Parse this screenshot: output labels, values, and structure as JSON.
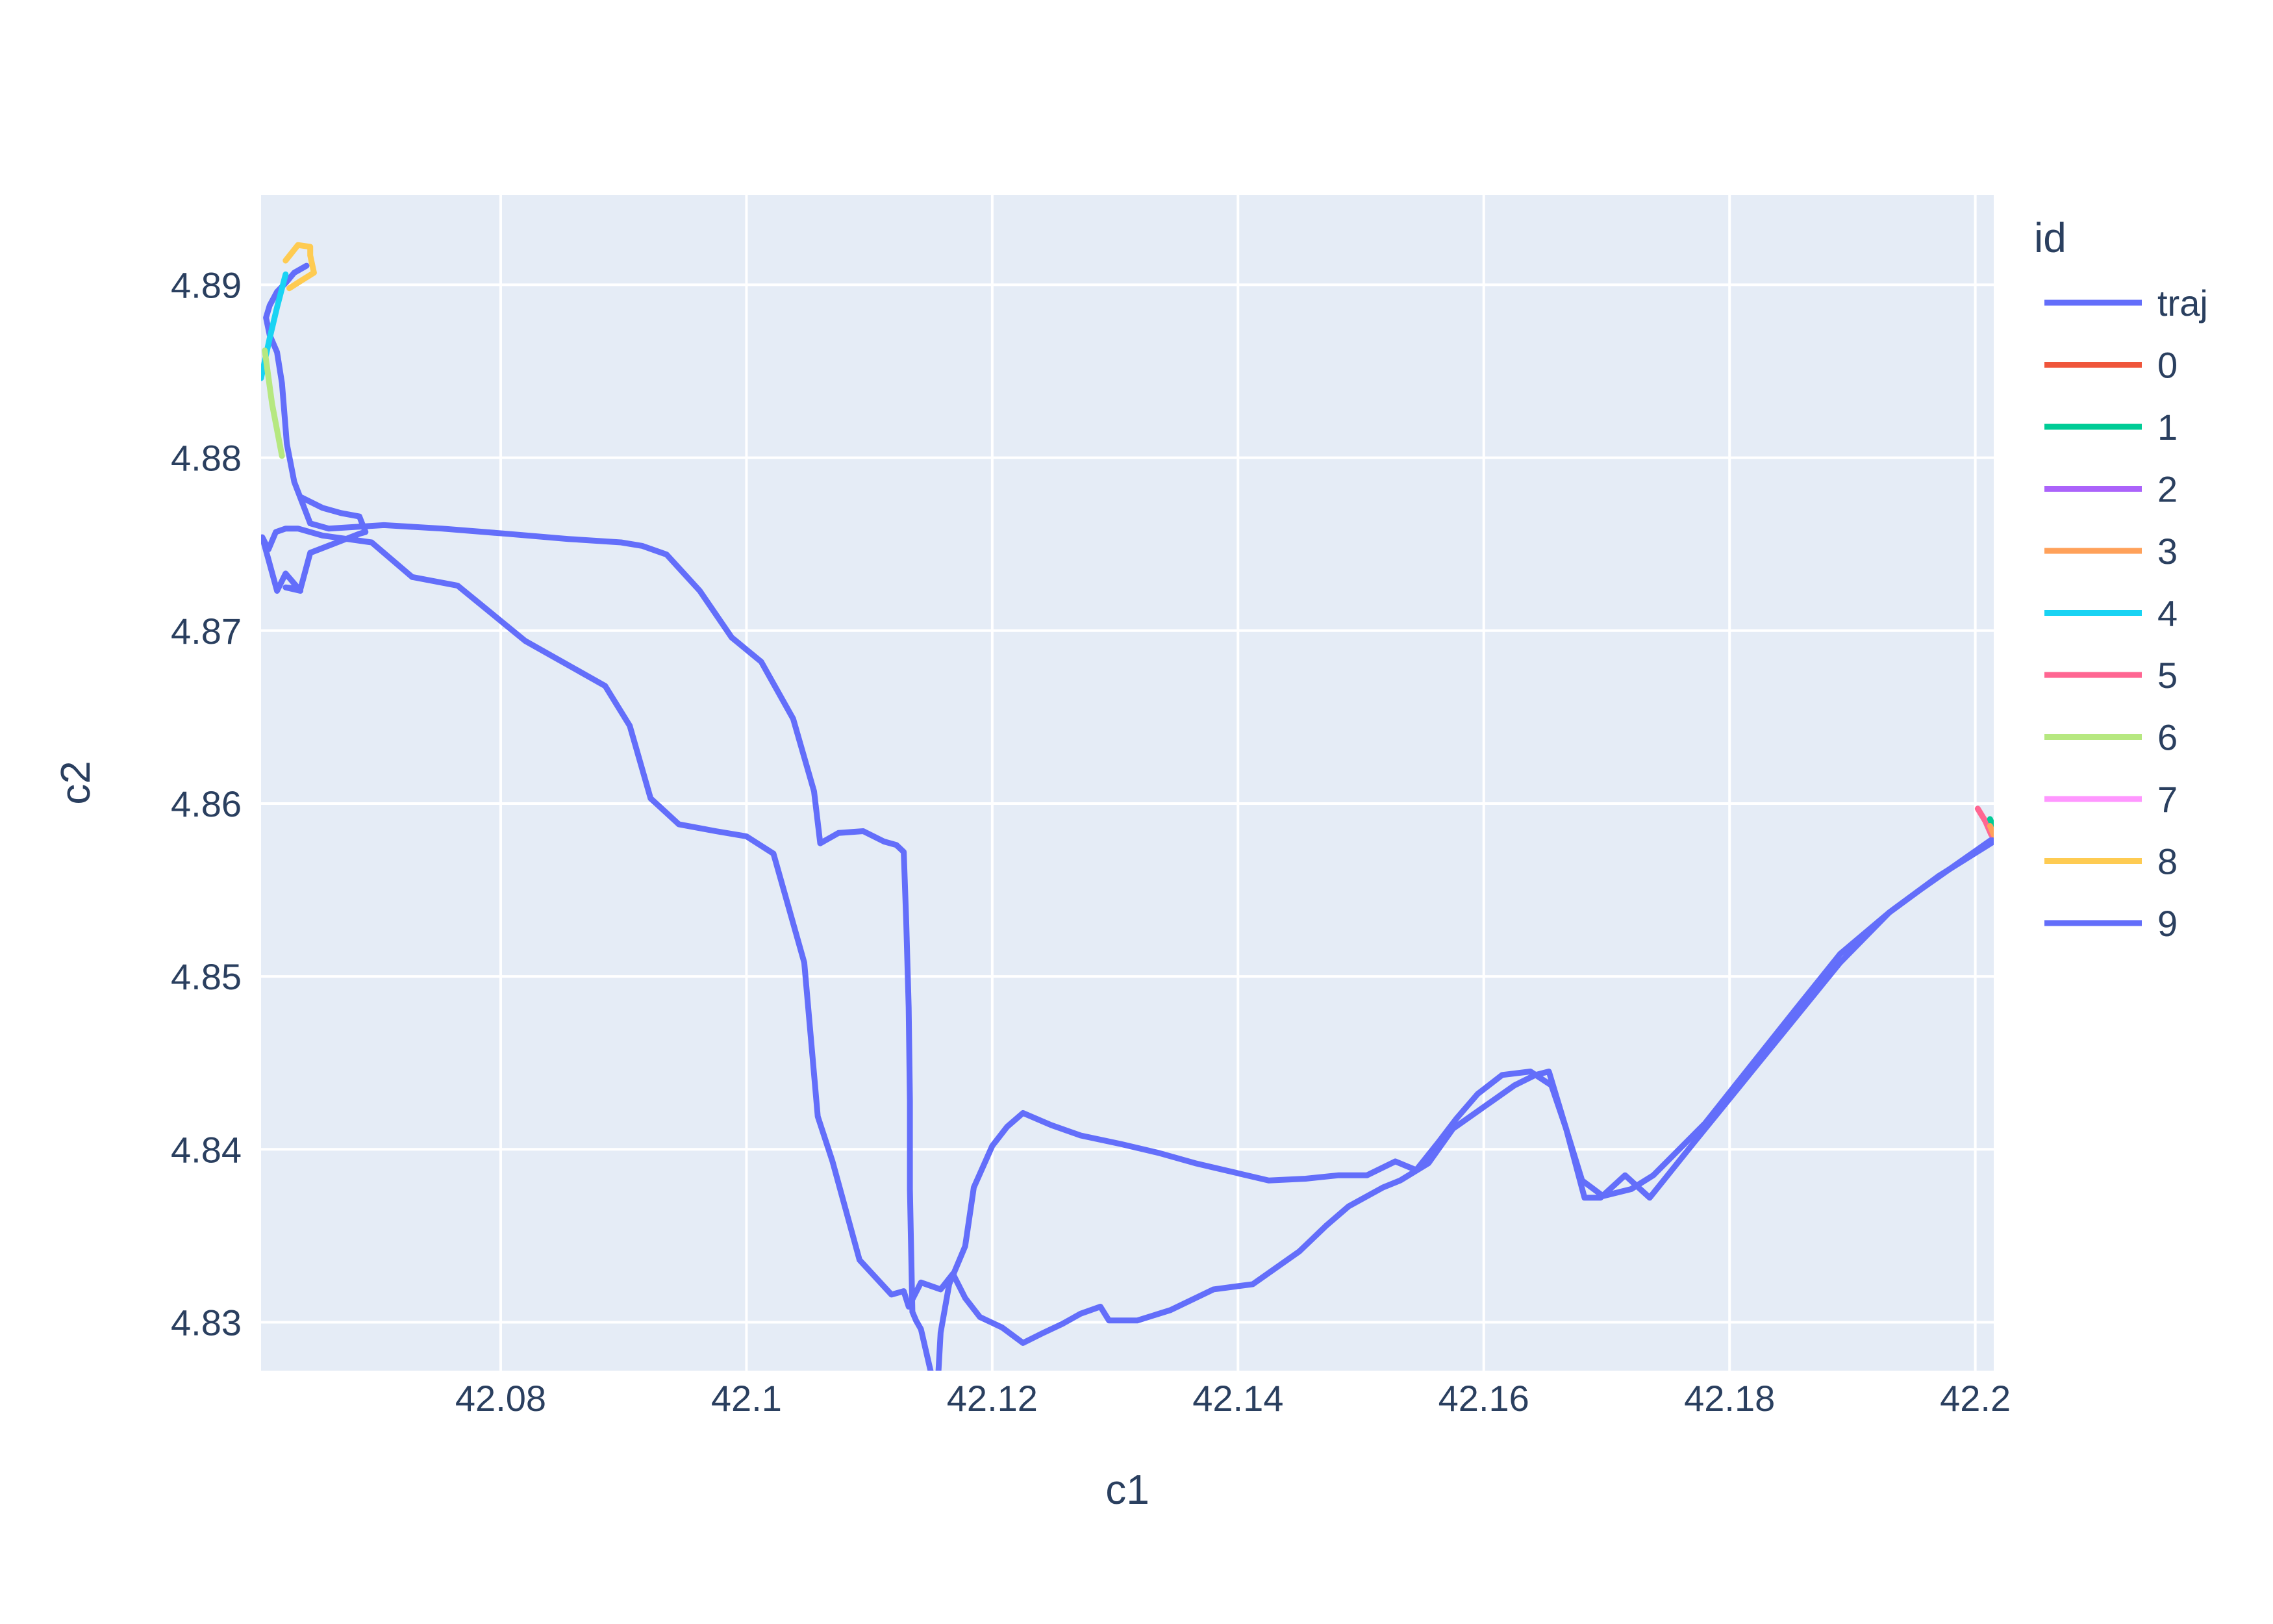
{
  "chart_data": {
    "type": "line",
    "title": "",
    "xlabel": "c1",
    "ylabel": "c2",
    "xlim": [
      42.0605,
      42.2015
    ],
    "ylim": [
      4.8272,
      4.8952
    ],
    "x_ticks": [
      42.08,
      42.1,
      42.12,
      42.14,
      42.16,
      42.18,
      42.2
    ],
    "x_tick_labels": [
      "42.08",
      "42.1",
      "42.12",
      "42.14",
      "42.16",
      "42.18",
      "42.2"
    ],
    "y_ticks": [
      4.83,
      4.84,
      4.85,
      4.86,
      4.87,
      4.88,
      4.89
    ],
    "y_tick_labels": [
      "4.83",
      "4.84",
      "4.85",
      "4.86",
      "4.87",
      "4.88",
      "4.89"
    ],
    "grid": true,
    "legend": {
      "title": "id",
      "position": "right",
      "entries": [
        "traj",
        "0",
        "1",
        "2",
        "3",
        "4",
        "5",
        "6",
        "7",
        "8",
        "9"
      ]
    },
    "series": [
      {
        "name": "traj",
        "color": "#636efa",
        "x": [
          42.2015,
          42.197,
          42.193,
          42.189,
          42.185,
          42.181,
          42.177,
          42.1735,
          42.1715,
          42.1695,
          42.1682,
          42.1667,
          42.1653,
          42.1642,
          42.1625,
          42.1605,
          42.1575,
          42.1555,
          42.1532,
          42.1518,
          42.149,
          42.1472,
          42.145,
          42.1412,
          42.138,
          42.1345,
          42.1318,
          42.1295,
          42.1288,
          42.1272,
          42.1257,
          42.1242,
          42.1225,
          42.1208,
          42.119,
          42.1178,
          42.1168,
          42.1158,
          42.1142,
          42.1132,
          42.1128,
          42.1118,
          42.1092,
          42.107,
          42.1058,
          42.1047,
          42.1022,
          42.1,
          42.0975,
          42.0945,
          42.0922,
          42.0905,
          42.0885,
          42.082,
          42.0765,
          42.0728,
          42.0695,
          42.0655,
          42.0635,
          42.0625,
          42.0617,
          42.0611,
          42.0606,
          42.0618,
          42.0625,
          42.0637,
          42.0625,
          42.0637,
          42.0645,
          42.0685,
          42.069,
          42.0685,
          42.067,
          42.0655,
          42.0638
        ],
        "y": [
          4.8578,
          4.8558,
          4.8537,
          4.8508,
          4.8473,
          4.8438,
          4.8403,
          4.8372,
          4.8385,
          4.8372,
          4.8372,
          4.8412,
          4.8445,
          4.8443,
          4.8437,
          4.8427,
          4.8412,
          4.8392,
          4.8382,
          4.8378,
          4.8367,
          4.8356,
          4.8341,
          4.8322,
          4.8319,
          4.8307,
          4.8301,
          4.8301,
          4.8309,
          4.8305,
          4.8299,
          4.8294,
          4.8288,
          4.8297,
          4.8303,
          4.8314,
          4.8328,
          4.8319,
          4.8323,
          4.8309,
          4.8318,
          4.8316,
          4.8336,
          4.8393,
          4.8419,
          4.8508,
          4.8571,
          4.8581,
          4.8584,
          4.8588,
          4.8603,
          4.8645,
          4.8668,
          4.8694,
          4.8726,
          4.8731,
          4.8751,
          4.8755,
          4.8759,
          4.8759,
          4.8757,
          4.8747,
          4.8754,
          4.8723,
          4.8733,
          4.8723,
          4.8725,
          4.8724,
          4.8745,
          4.8756,
          4.8757,
          4.8766,
          4.8768,
          4.8771,
          4.8777
        ]
      },
      {
        "name": "9",
        "color": "#636efa",
        "x": [
          42.2015,
          42.1985,
          42.1955,
          42.193,
          42.189,
          42.1855,
          42.1818,
          42.178,
          42.1738,
          42.172,
          42.1697,
          42.168,
          42.1667,
          42.1655,
          42.1638,
          42.1615,
          42.1595,
          42.1578,
          42.1563,
          42.1545,
          42.1528,
          42.1505,
          42.1482,
          42.1455,
          42.1425,
          42.1395,
          42.1365,
          42.1335,
          42.1305,
          42.1272,
          42.1248,
          42.1225,
          42.1212,
          42.12,
          42.1185,
          42.1178,
          42.1165,
          42.1158,
          42.1155,
          42.1142,
          42.1138,
          42.1135,
          42.1133,
          42.1133,
          42.1132,
          42.113,
          42.1128,
          42.1122,
          42.1112,
          42.1095,
          42.1075,
          42.106,
          42.1055,
          42.1038,
          42.1012,
          42.0988,
          42.0962,
          42.0935,
          42.0915,
          42.0898,
          42.0855,
          42.0805,
          42.0752,
          42.0705,
          42.066,
          42.0645,
          42.0632,
          42.0626,
          42.0622,
          42.0618,
          42.0612,
          42.0609,
          42.0612,
          42.0618,
          42.0625,
          42.0632,
          42.0642
        ],
        "y": [
          4.858,
          4.8565,
          4.855,
          4.8537,
          4.8513,
          4.8482,
          4.8449,
          4.8415,
          4.8385,
          4.8377,
          4.8373,
          4.8382,
          4.8412,
          4.8437,
          4.8445,
          4.8443,
          4.8432,
          4.8418,
          4.8404,
          4.8388,
          4.8393,
          4.8385,
          4.8385,
          4.8383,
          4.8382,
          4.8387,
          4.8392,
          4.8398,
          4.8403,
          4.8408,
          4.8414,
          4.8421,
          4.8413,
          4.8402,
          4.8378,
          4.8344,
          4.8322,
          4.8294,
          4.8256,
          4.8296,
          4.8301,
          4.8306,
          4.8377,
          4.8428,
          4.8482,
          4.8532,
          4.8572,
          4.8576,
          4.8578,
          4.8584,
          4.8583,
          4.8577,
          4.8607,
          4.8649,
          4.8682,
          4.8696,
          4.8723,
          4.8744,
          4.8749,
          4.8751,
          4.8753,
          4.8756,
          4.8759,
          4.8761,
          4.8759,
          4.8762,
          4.8786,
          4.8808,
          4.8843,
          4.8861,
          4.8871,
          4.8881,
          4.8888,
          4.8896,
          4.8901,
          4.8907,
          4.8911
        ]
      },
      {
        "name": "8",
        "color": "#fecb52",
        "x": [
          42.0628,
          42.0639,
          42.0648,
          42.0645,
          42.0645,
          42.0635,
          42.0625
        ],
        "y": [
          4.8898,
          4.8903,
          4.8907,
          4.8917,
          4.8922,
          4.8923,
          4.8914
        ]
      },
      {
        "name": "4",
        "color": "#19d3f3",
        "x": [
          42.0605,
          42.0612,
          42.0618,
          42.0625
        ],
        "y": [
          4.8846,
          4.8869,
          4.8887,
          4.8906
        ]
      },
      {
        "name": "6",
        "color": "#b6e880",
        "x": [
          42.0608,
          42.0614,
          42.0622
        ],
        "y": [
          4.8862,
          4.8831,
          4.8801
        ]
      },
      {
        "name": "5",
        "color": "#ff6692",
        "x": [
          42.2002,
          42.2008,
          42.2013
        ],
        "y": [
          4.8597,
          4.859,
          4.8582
        ]
      },
      {
        "name": "1",
        "color": "#00cc96",
        "x": [
          42.2012,
          42.2015
        ],
        "y": [
          4.8591,
          4.8586
        ]
      },
      {
        "name": "3",
        "color": "#ffa15a",
        "x": [
          42.2012,
          42.2015
        ],
        "y": [
          4.8587,
          4.8582
        ]
      },
      {
        "name": "0",
        "color": "#ef553b",
        "x": [],
        "y": []
      },
      {
        "name": "2",
        "color": "#ab63fa",
        "x": [],
        "y": []
      },
      {
        "name": "7",
        "color": "#ff97ff",
        "x": [],
        "y": []
      }
    ]
  }
}
